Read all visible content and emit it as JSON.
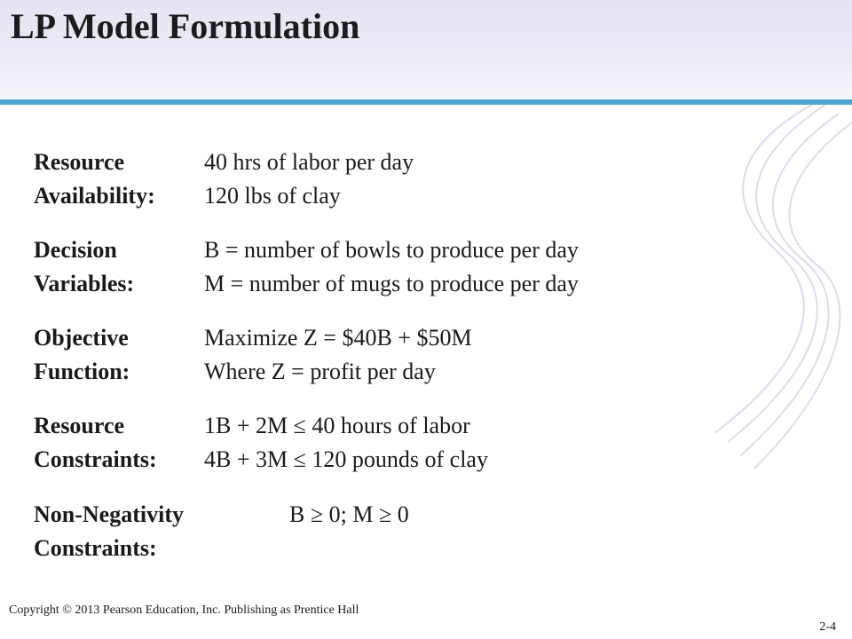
{
  "slide": {
    "title": "LP Model Formulation",
    "footer": "Copyright © 2013 Pearson Education, Inc. Publishing as Prentice Hall",
    "slide_number": "2-4",
    "accent_color": "#4fa3d1"
  },
  "sections": [
    {
      "label1": "Resource",
      "label2": "Availability:",
      "value1": "40 hrs of labor per day",
      "value2": "120 lbs of clay"
    },
    {
      "label1": "Decision",
      "label2": "Variables:",
      "value1": "B = number of bowls to produce per day",
      "value2": "M = number of mugs to produce per day"
    },
    {
      "label1": "Objective",
      "label2": "Function:",
      "value1": "Maximize Z = $40B + $50M",
      "value2": "Where Z = profit per day"
    },
    {
      "label1": "Resource",
      "label2": "Constraints:",
      "value1": "1B + 2M ≤ 40 hours of labor",
      "value2": "4B + 3M ≤ 120 pounds of clay"
    },
    {
      "label1": "Non-Negativity",
      "label2": "Constraints:",
      "value1": "B ≥ 0; M ≥ 0"
    }
  ]
}
